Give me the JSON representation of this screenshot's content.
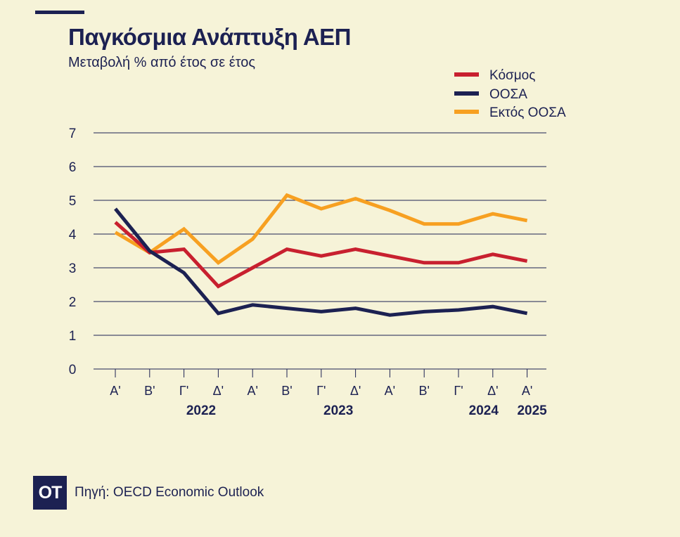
{
  "header": {
    "title": "Παγκόσμια Ανάπτυξη ΑΕΠ",
    "subtitle": "Μεταβολή % από έτος σε έτος"
  },
  "footer": {
    "logo_text": "OT",
    "source": "Πηγή: OECD Economic Outlook"
  },
  "chart_data": {
    "type": "line",
    "title": "Παγκόσμια Ανάπτυξη ΑΕΠ",
    "subtitle": "Μεταβολή % από έτος σε έτος",
    "categories": [
      "Α'",
      "Β'",
      "Γ'",
      "Δ'",
      "Α'",
      "Β'",
      "Γ'",
      "Δ'",
      "Α'",
      "Β'",
      "Γ'",
      "Δ'",
      "Α'"
    ],
    "year_labels": [
      {
        "label": "2022",
        "from": 0,
        "to": 3
      },
      {
        "label": "2023",
        "from": 4,
        "to": 7
      },
      {
        "label": "2024",
        "from": 8,
        "to": 11
      },
      {
        "label": "2025",
        "from": 12,
        "to": 12
      }
    ],
    "ylim": [
      0,
      7
    ],
    "yticks": [
      0,
      1,
      2,
      3,
      4,
      5,
      6,
      7
    ],
    "grid": true,
    "legend_position": "top-right",
    "series": [
      {
        "name": "Κόσμος",
        "color": "#c8202f",
        "values": [
          4.35,
          3.45,
          3.55,
          2.45,
          3.0,
          3.55,
          3.35,
          3.55,
          3.35,
          3.15,
          3.15,
          3.4,
          3.2
        ]
      },
      {
        "name": "ΟΟΣΑ",
        "color": "#1c2152",
        "values": [
          4.75,
          3.5,
          2.85,
          1.65,
          1.9,
          1.8,
          1.7,
          1.8,
          1.6,
          1.7,
          1.75,
          1.85,
          1.65
        ]
      },
      {
        "name": "Εκτός ΟΟΣΑ",
        "color": "#f7a021",
        "values": [
          4.05,
          3.45,
          4.15,
          3.15,
          3.85,
          5.15,
          4.75,
          5.05,
          4.7,
          4.3,
          4.3,
          4.6,
          4.4
        ]
      }
    ]
  }
}
